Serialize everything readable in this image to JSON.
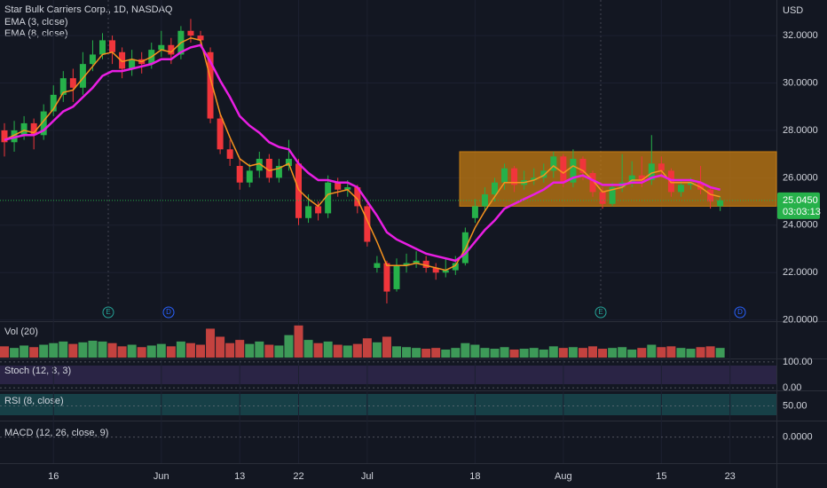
{
  "chart_data": {
    "type": "candlestick",
    "title": "Star Bulk Carriers Corp., 1D, NASDAQ",
    "indicators": [
      "EMA (3, close)",
      "EMA (8, close)"
    ],
    "currency": "USD",
    "up_color": "#26b14a",
    "down_color": "#f0353b",
    "ylim": [
      19.95,
      33.5
    ],
    "yticks": [
      {
        "value": 20,
        "label": "20.0000"
      },
      {
        "value": 22,
        "label": "22.0000"
      },
      {
        "value": 24,
        "label": "24.0000"
      },
      {
        "value": 26,
        "label": "26.0000"
      },
      {
        "value": 28,
        "label": "28.0000"
      },
      {
        "value": 30,
        "label": "30.0000"
      },
      {
        "value": 32,
        "label": "32.0000"
      }
    ],
    "xticks": [
      {
        "value": 5,
        "label": "16"
      },
      {
        "value": 16,
        "label": "Jun"
      },
      {
        "value": 24,
        "label": "13"
      },
      {
        "value": 30,
        "label": "22"
      },
      {
        "value": 37,
        "label": "Jul"
      },
      {
        "value": 48,
        "label": "18"
      },
      {
        "value": 57,
        "label": "Aug"
      },
      {
        "value": 67,
        "label": "15"
      },
      {
        "value": 74,
        "label": "23"
      }
    ],
    "open": [
      28.0,
      27.5,
      27.8,
      28.3,
      27.8,
      28.8,
      29.5,
      30.2,
      29.8,
      30.8,
      31.2,
      31.8,
      31.3,
      30.6,
      31.0,
      30.8,
      31.4,
      31.6,
      31.2,
      32.2,
      32.0,
      31.3,
      28.5,
      27.2,
      26.5,
      25.8,
      26.3,
      26.8,
      26.0,
      26.5,
      26.6,
      24.3,
      24.8,
      24.5,
      25.8,
      25.5,
      25.6,
      24.8,
      22.2,
      22.4,
      21.3,
      22.3,
      22.4,
      22.5,
      22.2,
      22.0,
      22.1,
      22.4,
      24.3,
      24.8,
      25.3,
      25.8,
      26.4,
      25.7,
      25.9,
      26.0,
      26.3,
      26.9,
      25.8,
      26.8,
      26.2,
      25.4,
      24.9,
      25.6,
      25.8,
      26.1,
      25.9,
      26.6,
      26.3,
      25.4,
      25.7,
      25.8,
      25.5,
      24.8
    ],
    "high": [
      28.3,
      28.4,
      28.6,
      28.5,
      29.1,
      29.9,
      30.5,
      30.6,
      31.3,
      31.8,
      32.1,
      32.0,
      31.5,
      31.4,
      31.3,
      31.7,
      32.2,
      31.9,
      32.4,
      32.7,
      32.2,
      31.5,
      28.7,
      27.6,
      26.8,
      26.6,
      27.1,
      27.0,
      26.8,
      27.6,
      26.8,
      25.3,
      25.0,
      26.1,
      26.0,
      25.9,
      25.7,
      24.9,
      22.7,
      22.5,
      22.6,
      22.8,
      22.9,
      22.7,
      22.4,
      22.6,
      22.7,
      23.9,
      25.1,
      25.6,
      26.0,
      26.6,
      26.5,
      26.3,
      26.4,
      26.6,
      27.1,
      27.0,
      27.2,
      26.9,
      26.3,
      25.6,
      25.8,
      27.0,
      26.7,
      26.9,
      27.8,
      26.9,
      26.4,
      25.9,
      26.0,
      26.5,
      25.6,
      25.2
    ],
    "low": [
      26.9,
      27.1,
      27.6,
      27.2,
      27.6,
      28.6,
      29.2,
      29.2,
      29.5,
      30.5,
      31.0,
      30.8,
      30.2,
      30.3,
      30.4,
      30.6,
      31.1,
      30.8,
      31.0,
      31.7,
      31.5,
      28.3,
      27.0,
      26.5,
      25.5,
      25.6,
      26.0,
      25.8,
      25.8,
      26.3,
      24.0,
      24.1,
      24.2,
      24.3,
      25.2,
      25.2,
      24.5,
      23.1,
      22.0,
      20.7,
      21.2,
      22.0,
      22.2,
      22.0,
      21.7,
      21.8,
      21.9,
      22.3,
      24.1,
      24.6,
      25.0,
      25.5,
      25.4,
      25.5,
      25.7,
      25.8,
      26.0,
      25.6,
      25.6,
      25.9,
      25.2,
      24.7,
      24.8,
      25.4,
      25.6,
      25.6,
      25.7,
      26.0,
      25.2,
      25.2,
      25.5,
      25.3,
      24.7,
      24.6
    ],
    "close": [
      27.5,
      28.0,
      28.3,
      27.8,
      28.8,
      29.5,
      30.2,
      29.8,
      30.8,
      31.2,
      31.8,
      31.3,
      30.6,
      31.0,
      30.8,
      31.4,
      31.6,
      31.2,
      32.2,
      32.0,
      31.8,
      28.5,
      27.2,
      26.8,
      25.8,
      26.3,
      26.8,
      26.0,
      26.5,
      26.8,
      24.3,
      24.8,
      24.5,
      25.8,
      25.5,
      25.6,
      24.8,
      23.3,
      22.4,
      21.2,
      22.3,
      22.4,
      22.5,
      22.2,
      22.0,
      22.1,
      22.4,
      23.7,
      24.8,
      25.3,
      25.8,
      26.4,
      25.7,
      25.9,
      26.0,
      26.3,
      26.9,
      25.8,
      26.8,
      26.2,
      25.4,
      24.9,
      25.6,
      25.8,
      26.1,
      25.9,
      26.6,
      26.3,
      25.4,
      25.7,
      25.8,
      25.5,
      25.0,
      25.045
    ],
    "series": [
      {
        "name": "EMA (3, close)",
        "color": "#f7931e",
        "values": [
          27.6,
          27.8,
          28.0,
          27.9,
          28.4,
          28.9,
          29.6,
          29.7,
          30.2,
          30.7,
          31.2,
          31.3,
          30.9,
          31.0,
          30.9,
          31.1,
          31.4,
          31.3,
          31.7,
          31.9,
          31.8,
          30.2,
          28.7,
          27.7,
          26.8,
          26.5,
          26.6,
          26.3,
          26.4,
          26.6,
          25.5,
          25.1,
          24.8,
          25.3,
          25.4,
          25.5,
          25.1,
          24.2,
          23.3,
          22.3,
          22.3,
          22.3,
          22.4,
          22.3,
          22.2,
          22.1,
          22.3,
          23.0,
          23.9,
          24.6,
          25.2,
          25.8,
          25.8,
          25.8,
          25.9,
          26.1,
          26.5,
          26.2,
          26.5,
          26.3,
          25.9,
          25.4,
          25.5,
          25.6,
          25.9,
          25.9,
          26.2,
          26.3,
          25.8,
          25.8,
          25.8,
          25.6,
          25.3,
          25.2
        ]
      },
      {
        "name": "EMA (8, close)",
        "color": "#e91ee3",
        "values": [
          27.6,
          27.7,
          27.8,
          27.8,
          28.0,
          28.4,
          28.8,
          29.0,
          29.4,
          29.8,
          30.3,
          30.5,
          30.5,
          30.6,
          30.7,
          30.8,
          31.0,
          31.0,
          31.3,
          31.5,
          31.6,
          30.9,
          30.1,
          29.4,
          28.6,
          28.2,
          27.9,
          27.5,
          27.3,
          27.2,
          26.6,
          26.2,
          25.9,
          25.9,
          25.8,
          25.8,
          25.6,
          25.0,
          24.4,
          23.7,
          23.4,
          23.2,
          23.0,
          22.8,
          22.7,
          22.6,
          22.5,
          22.8,
          23.3,
          23.8,
          24.2,
          24.7,
          24.9,
          25.1,
          25.3,
          25.5,
          25.8,
          25.8,
          26.0,
          26.1,
          25.9,
          25.7,
          25.7,
          25.7,
          25.8,
          25.8,
          26.0,
          26.1,
          25.9,
          25.9,
          25.9,
          25.8,
          25.6,
          25.5
        ]
      }
    ],
    "zone": {
      "low": 24.8,
      "high": 27.1,
      "color": "#c67c12"
    },
    "last_price": {
      "value": 25.045,
      "label": "25.0450",
      "countdown": "03:03:13"
    },
    "events": [
      "E",
      "D",
      "E",
      "D"
    ],
    "volume": {
      "title": "Vol (20)",
      "ylim": [
        0,
        42
      ],
      "values": [
        14,
        12,
        15,
        13,
        16,
        18,
        20,
        17,
        19,
        21,
        20,
        18,
        14,
        16,
        13,
        15,
        17,
        14,
        20,
        18,
        16,
        36,
        26,
        18,
        22,
        17,
        20,
        16,
        15,
        28,
        40,
        22,
        18,
        20,
        16,
        15,
        17,
        24,
        19,
        26,
        14,
        13,
        12,
        11,
        12,
        10,
        12,
        18,
        16,
        12,
        11,
        13,
        10,
        11,
        12,
        10,
        14,
        12,
        13,
        12,
        14,
        11,
        12,
        13,
        10,
        12,
        16,
        13,
        14,
        12,
        11,
        13,
        14,
        12
      ]
    },
    "stoch": {
      "title": "Stoch (12, 3, 3)",
      "ylim": [
        -10,
        110
      ],
      "yticks": [
        {
          "value": 0,
          "label": "0.00"
        },
        {
          "value": 100,
          "label": "100.00"
        }
      ]
    },
    "rsi": {
      "title": "RSI (8, close)",
      "ylim": [
        10,
        90
      ],
      "yticks": [
        {
          "value": 50,
          "label": "50.00"
        }
      ]
    },
    "macd": {
      "title": "MACD (12, 26, close, 9)",
      "ylim": [
        -2,
        1.2
      ],
      "yticks": [
        {
          "value": 0,
          "label": "0.0000"
        }
      ]
    }
  }
}
